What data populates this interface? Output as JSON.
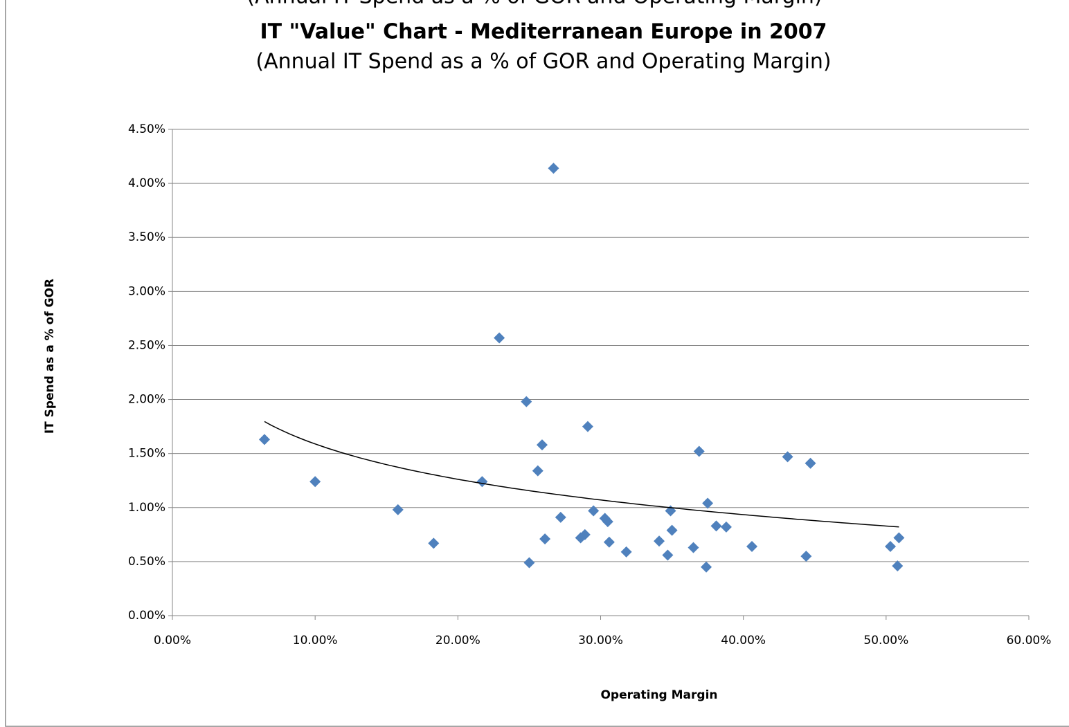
{
  "chart_data": {
    "type": "scatter",
    "title": "IT \"Value\" Chart - Mediterranean Europe in 2007",
    "subtitle": "(Annual IT Spend as a % of GOR and Operating Margin)",
    "x_label": "Operating Margin",
    "y_label": "IT Spend as a % of GOR",
    "series": [
      {
        "color": "#4f81bd",
        "x": [
          6.45,
          10.0,
          15.8,
          18.3,
          21.7,
          22.9,
          24.8,
          25.0,
          25.6,
          25.9,
          26.1,
          26.7,
          27.2,
          28.6,
          28.9,
          29.1,
          29.5,
          30.3,
          30.5,
          30.6,
          31.8,
          34.1,
          34.7,
          34.9,
          35.0,
          36.5,
          36.9,
          37.4,
          37.5,
          38.1,
          38.8,
          40.6,
          43.1,
          44.4,
          44.7,
          50.3,
          50.8,
          50.9
        ],
        "values": [
          1.63,
          1.24,
          0.98,
          0.67,
          1.24,
          2.57,
          1.98,
          0.49,
          1.34,
          1.58,
          0.71,
          4.14,
          0.91,
          0.72,
          0.75,
          1.75,
          0.97,
          0.9,
          0.87,
          0.68,
          0.59,
          0.69,
          0.56,
          0.97,
          0.79,
          0.63,
          1.52,
          0.45,
          1.04,
          0.83,
          0.82,
          0.64,
          1.47,
          0.55,
          1.41,
          0.64,
          0.46,
          0.72
        ]
      }
    ],
    "trendline": "logarithmic",
    "trendline_color": "#000000",
    "xlim": [
      0,
      60
    ],
    "xticks": [
      {
        "value": 0,
        "label": "0.00%"
      },
      {
        "value": 10,
        "label": "10.00%"
      },
      {
        "value": 20,
        "label": "20.00%"
      },
      {
        "value": 30,
        "label": "30.00%"
      },
      {
        "value": 40,
        "label": "40.00%"
      },
      {
        "value": 50,
        "label": "50.00%"
      },
      {
        "value": 60,
        "label": "60.00%"
      }
    ],
    "ylim": [
      0,
      4.5
    ],
    "yticks": [
      {
        "value": 0,
        "label": "0.00%"
      },
      {
        "value": 0.5,
        "label": "0.50%"
      },
      {
        "value": 1,
        "label": "1.00%"
      },
      {
        "value": 1.5,
        "label": "1.50%"
      },
      {
        "value": 2,
        "label": "2.00%"
      },
      {
        "value": 2.5,
        "label": "2.50%"
      },
      {
        "value": 3,
        "label": "3.00%"
      },
      {
        "value": 3.5,
        "label": "3.50%"
      },
      {
        "value": 4,
        "label": "4.00%"
      },
      {
        "value": 4.5,
        "label": "4.50%"
      }
    ],
    "grid": true
  }
}
